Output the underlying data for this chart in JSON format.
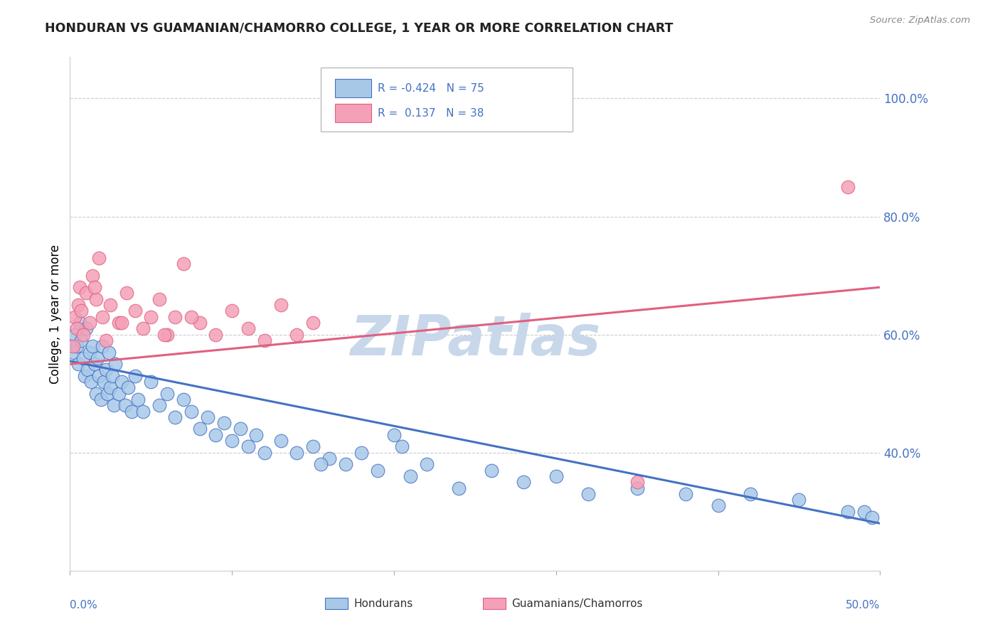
{
  "title": "HONDURAN VS GUAMANIAN/CHAMORRO COLLEGE, 1 YEAR OR MORE CORRELATION CHART",
  "source_text": "Source: ZipAtlas.com",
  "ylabel": "College, 1 year or more",
  "xlim": [
    0.0,
    50.0
  ],
  "ylim": [
    20.0,
    107.0
  ],
  "yticks": [
    40.0,
    60.0,
    80.0,
    100.0
  ],
  "ytick_labels": [
    "40.0%",
    "60.0%",
    "80.0%",
    "100.0%"
  ],
  "color_honduran": "#a8c8e8",
  "color_guamanian": "#f4a0b8",
  "color_line_honduran": "#4472c4",
  "color_line_guamanian": "#e06080",
  "watermark": "ZIPatlas",
  "watermark_color": "#c8d8ea",
  "honduran_x": [
    0.2,
    0.3,
    0.4,
    0.5,
    0.6,
    0.7,
    0.8,
    0.9,
    1.0,
    1.1,
    1.2,
    1.3,
    1.4,
    1.5,
    1.6,
    1.7,
    1.8,
    1.9,
    2.0,
    2.1,
    2.2,
    2.3,
    2.4,
    2.5,
    2.6,
    2.7,
    2.8,
    3.0,
    3.2,
    3.4,
    3.6,
    3.8,
    4.0,
    4.2,
    4.5,
    5.0,
    5.5,
    6.0,
    6.5,
    7.0,
    7.5,
    8.0,
    8.5,
    9.0,
    9.5,
    10.0,
    10.5,
    11.0,
    11.5,
    12.0,
    13.0,
    14.0,
    15.0,
    16.0,
    17.0,
    18.0,
    19.0,
    20.0,
    21.0,
    22.0,
    24.0,
    26.0,
    28.0,
    30.0,
    32.0,
    35.0,
    38.0,
    40.0,
    42.0,
    45.0,
    48.0,
    49.0,
    49.5,
    15.5,
    20.5
  ],
  "honduran_y": [
    57,
    60,
    58,
    55,
    62,
    59,
    56,
    53,
    61,
    54,
    57,
    52,
    58,
    55,
    50,
    56,
    53,
    49,
    58,
    52,
    54,
    50,
    57,
    51,
    53,
    48,
    55,
    50,
    52,
    48,
    51,
    47,
    53,
    49,
    47,
    52,
    48,
    50,
    46,
    49,
    47,
    44,
    46,
    43,
    45,
    42,
    44,
    41,
    43,
    40,
    42,
    40,
    41,
    39,
    38,
    40,
    37,
    43,
    36,
    38,
    34,
    37,
    35,
    36,
    33,
    34,
    33,
    31,
    33,
    32,
    30,
    30,
    29,
    38,
    41
  ],
  "guamanian_x": [
    0.2,
    0.3,
    0.4,
    0.5,
    0.6,
    0.7,
    0.8,
    1.0,
    1.2,
    1.4,
    1.6,
    1.8,
    2.0,
    2.5,
    3.0,
    3.5,
    4.0,
    4.5,
    5.0,
    5.5,
    6.0,
    6.5,
    7.0,
    8.0,
    9.0,
    10.0,
    11.0,
    12.0,
    13.0,
    14.0,
    15.0,
    2.2,
    3.2,
    5.8,
    7.5,
    1.5,
    48.0,
    35.0
  ],
  "guamanian_y": [
    58,
    63,
    61,
    65,
    68,
    64,
    60,
    67,
    62,
    70,
    66,
    73,
    63,
    65,
    62,
    67,
    64,
    61,
    63,
    66,
    60,
    63,
    72,
    62,
    60,
    64,
    61,
    59,
    65,
    60,
    62,
    59,
    62,
    60,
    63,
    68,
    85,
    35
  ],
  "blue_line_x0": 0.0,
  "blue_line_y0": 55.5,
  "blue_line_x1": 50.0,
  "blue_line_y1": 28.0,
  "pink_line_x0": 0.0,
  "pink_line_y0": 55.0,
  "pink_line_x1": 50.0,
  "pink_line_y1": 68.0
}
